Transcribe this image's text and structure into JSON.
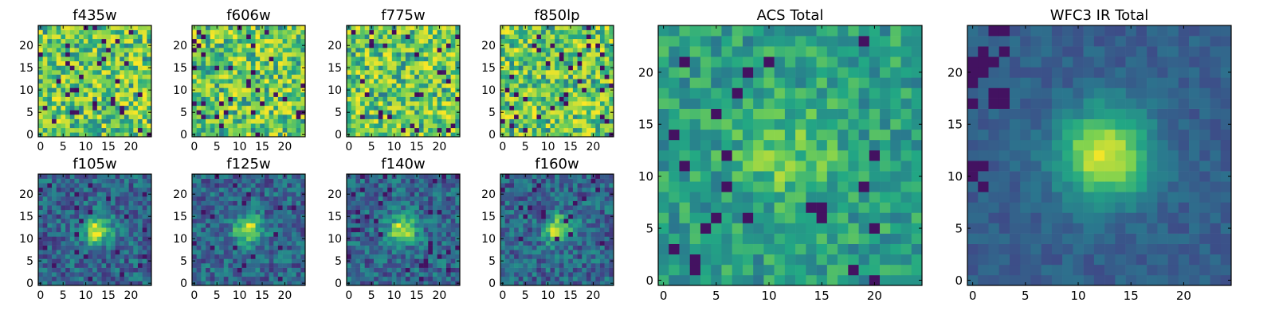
{
  "figure": {
    "background": "#ffffff",
    "colormap": "viridis",
    "colormap_stops": [
      "#440154",
      "#414487",
      "#2a788e",
      "#22a884",
      "#7ad151",
      "#fde725"
    ]
  },
  "chart_data": [
    {
      "type": "heatmap",
      "title": "f435w",
      "xlabel": "",
      "ylabel": "",
      "xlim": [
        -0.5,
        24.5
      ],
      "ylim": [
        -0.5,
        24.5
      ],
      "xticks": [
        "0",
        "5",
        "10",
        "15",
        "20"
      ],
      "yticks": [
        "0",
        "5",
        "10",
        "15",
        "20"
      ],
      "grid": 25,
      "peak": null,
      "pattern": "noise"
    },
    {
      "type": "heatmap",
      "title": "f606w",
      "xlabel": "",
      "ylabel": "",
      "xlim": [
        -0.5,
        24.5
      ],
      "ylim": [
        -0.5,
        24.5
      ],
      "xticks": [
        "0",
        "5",
        "10",
        "15",
        "20"
      ],
      "yticks": [
        "0",
        "5",
        "10",
        "15",
        "20"
      ],
      "grid": 25,
      "peak": null,
      "pattern": "noise"
    },
    {
      "type": "heatmap",
      "title": "f775w",
      "xlabel": "",
      "ylabel": "",
      "xlim": [
        -0.5,
        24.5
      ],
      "ylim": [
        -0.5,
        24.5
      ],
      "xticks": [
        "0",
        "5",
        "10",
        "15",
        "20"
      ],
      "yticks": [
        "0",
        "5",
        "10",
        "15",
        "20"
      ],
      "grid": 25,
      "peak": null,
      "pattern": "noise"
    },
    {
      "type": "heatmap",
      "title": "f850lp",
      "xlabel": "",
      "ylabel": "",
      "xlim": [
        -0.5,
        24.5
      ],
      "ylim": [
        -0.5,
        24.5
      ],
      "xticks": [
        "0",
        "5",
        "10",
        "15",
        "20"
      ],
      "yticks": [
        "0",
        "5",
        "10",
        "15",
        "20"
      ],
      "grid": 25,
      "peak": null,
      "pattern": "noise"
    },
    {
      "type": "heatmap",
      "title": "f105w",
      "xlabel": "",
      "ylabel": "",
      "xlim": [
        -0.5,
        24.5
      ],
      "ylim": [
        -0.5,
        24.5
      ],
      "xticks": [
        "0",
        "5",
        "10",
        "15",
        "20"
      ],
      "yticks": [
        "0",
        "5",
        "10",
        "15",
        "20"
      ],
      "grid": 25,
      "peak": [
        12.5,
        12
      ],
      "pattern": "source"
    },
    {
      "type": "heatmap",
      "title": "f125w",
      "xlabel": "",
      "ylabel": "",
      "xlim": [
        -0.5,
        24.5
      ],
      "ylim": [
        -0.5,
        24.5
      ],
      "xticks": [
        "0",
        "5",
        "10",
        "15",
        "20"
      ],
      "yticks": [
        "0",
        "5",
        "10",
        "15",
        "20"
      ],
      "grid": 25,
      "peak": [
        12,
        12
      ],
      "pattern": "source"
    },
    {
      "type": "heatmap",
      "title": "f140w",
      "xlabel": "",
      "ylabel": "",
      "xlim": [
        -0.5,
        24.5
      ],
      "ylim": [
        -0.5,
        24.5
      ],
      "xticks": [
        "0",
        "5",
        "10",
        "15",
        "20"
      ],
      "yticks": [
        "0",
        "5",
        "10",
        "15",
        "20"
      ],
      "grid": 25,
      "peak": [
        12,
        12
      ],
      "pattern": "source"
    },
    {
      "type": "heatmap",
      "title": "f160w",
      "xlabel": "",
      "ylabel": "",
      "xlim": [
        -0.5,
        24.5
      ],
      "ylim": [
        -0.5,
        24.5
      ],
      "xticks": [
        "0",
        "5",
        "10",
        "15",
        "20"
      ],
      "yticks": [
        "0",
        "5",
        "10",
        "15",
        "20"
      ],
      "grid": 25,
      "peak": [
        12.5,
        12
      ],
      "pattern": "source"
    },
    {
      "type": "heatmap",
      "title": "ACS Total",
      "xlabel": "",
      "ylabel": "",
      "xlim": [
        -0.5,
        24.5
      ],
      "ylim": [
        -0.5,
        24.5
      ],
      "xticks": [
        "0",
        "5",
        "10",
        "15",
        "20"
      ],
      "yticks": [
        "0",
        "5",
        "10",
        "15",
        "20"
      ],
      "grid": 25,
      "peak": [
        12,
        12
      ],
      "pattern": "faint"
    },
    {
      "type": "heatmap",
      "title": "WFC3 IR Total",
      "xlabel": "",
      "ylabel": "",
      "xlim": [
        -0.5,
        24.5
      ],
      "ylim": [
        -0.5,
        24.5
      ],
      "xticks": [
        "0",
        "5",
        "10",
        "15",
        "20"
      ],
      "yticks": [
        "0",
        "5",
        "10",
        "15",
        "20"
      ],
      "grid": 25,
      "peak": [
        12.5,
        12
      ],
      "pattern": "smooth"
    }
  ]
}
